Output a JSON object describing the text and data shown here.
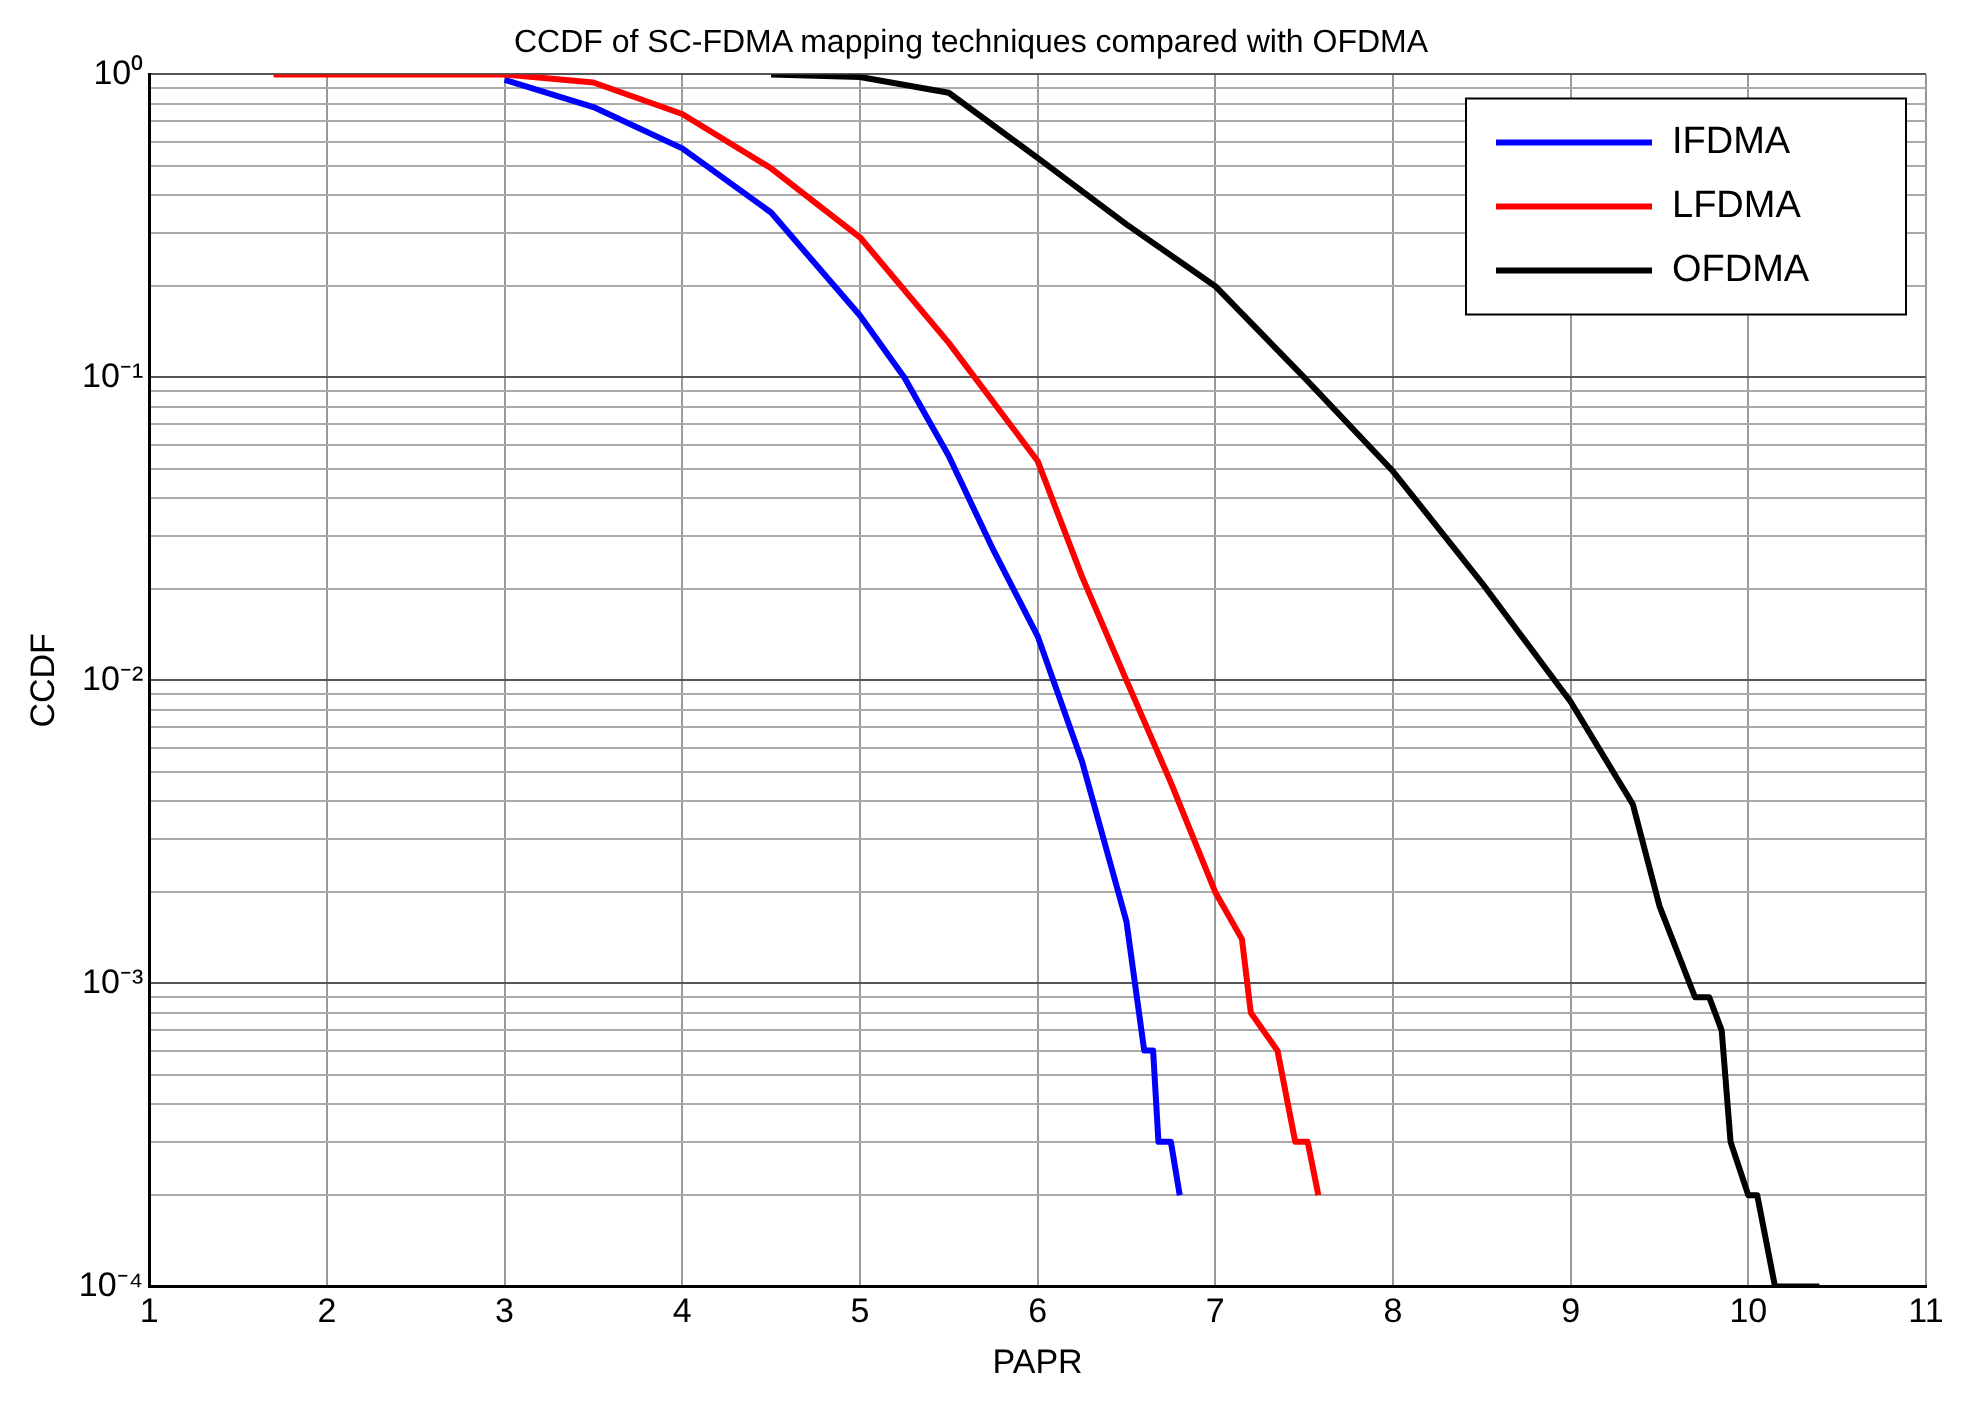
{
  "chart_data": {
    "type": "line",
    "title": "CCDF of SC-FDMA mapping techniques compared with OFDMA",
    "xlabel": "PAPR",
    "ylabel": "CCDF",
    "log": "y",
    "grid": true,
    "legend": "top right",
    "marker": "none",
    "line_style": "solid",
    "xlim": [
      1,
      11
    ],
    "xticks": [
      1,
      2,
      3,
      4,
      5,
      6,
      7,
      8,
      9,
      10,
      11
    ],
    "ylim": [
      0.0001,
      1
    ],
    "yticks": [
      {
        "value": 0.0001,
        "label": "10⁻⁴"
      },
      {
        "value": 0.0002,
        "label": null
      },
      {
        "value": 0.0003,
        "label": null
      },
      {
        "value": 0.0004,
        "label": null
      },
      {
        "value": 0.0005,
        "label": null
      },
      {
        "value": 0.0006,
        "label": null
      },
      {
        "value": 0.0007,
        "label": null
      },
      {
        "value": 0.0008,
        "label": null
      },
      {
        "value": 0.0009,
        "label": null
      },
      {
        "value": 0.001,
        "label": "10⁻³"
      },
      {
        "value": 0.002,
        "label": null
      },
      {
        "value": 0.003,
        "label": null
      },
      {
        "value": 0.004,
        "label": null
      },
      {
        "value": 0.005,
        "label": null
      },
      {
        "value": 0.006,
        "label": null
      },
      {
        "value": 0.007,
        "label": null
      },
      {
        "value": 0.008,
        "label": null
      },
      {
        "value": 0.009,
        "label": null
      },
      {
        "value": 0.01,
        "label": "10⁻²"
      },
      {
        "value": 0.02,
        "label": null
      },
      {
        "value": 0.03,
        "label": null
      },
      {
        "value": 0.04,
        "label": null
      },
      {
        "value": 0.05,
        "label": null
      },
      {
        "value": 0.06,
        "label": null
      },
      {
        "value": 0.07,
        "label": null
      },
      {
        "value": 0.08,
        "label": null
      },
      {
        "value": 0.09,
        "label": null
      },
      {
        "value": 0.1,
        "label": "10⁻¹"
      },
      {
        "value": 0.2,
        "label": null
      },
      {
        "value": 0.3,
        "label": null
      },
      {
        "value": 0.4,
        "label": null
      },
      {
        "value": 0.5,
        "label": null
      },
      {
        "value": 0.6,
        "label": null
      },
      {
        "value": 0.7,
        "label": null
      },
      {
        "value": 0.8,
        "label": null
      },
      {
        "value": 0.9,
        "label": null
      },
      {
        "value": 1,
        "label": "10⁰"
      }
    ],
    "series": [
      {
        "name": "IFDMA",
        "color": "#0000ff",
        "x": [
          3,
          3.5,
          4,
          4.5,
          5,
          5.25,
          5.5,
          5.75,
          6,
          6.25,
          6.5,
          6.6,
          6.65,
          6.68,
          6.75,
          6.8
        ],
        "values": [
          0.96,
          0.78,
          0.57,
          0.35,
          0.16,
          0.1,
          0.055,
          0.027,
          0.014,
          0.0054,
          0.0016,
          0.0006,
          0.0006,
          0.0003,
          0.0003,
          0.0002
        ]
      },
      {
        "name": "LFDMA",
        "color": "#ff0000",
        "x": [
          1.7,
          3,
          3.5,
          4,
          4.5,
          5,
          5.5,
          6,
          6.25,
          6.5,
          6.75,
          7,
          7.15,
          7.2,
          7.35,
          7.45,
          7.52,
          7.58
        ],
        "values": [
          1,
          1,
          0.94,
          0.74,
          0.49,
          0.29,
          0.13,
          0.053,
          0.022,
          0.01,
          0.0046,
          0.002,
          0.0014,
          0.0008,
          0.0006,
          0.0003,
          0.0003,
          0.0002
        ]
      },
      {
        "name": "OFDMA",
        "color": "#000000",
        "x": [
          4.5,
          5,
          5.5,
          6,
          6.5,
          7,
          7.5,
          8,
          8.5,
          9,
          9.35,
          9.5,
          9.7,
          9.78,
          9.85,
          9.9,
          10,
          10.05,
          10.15,
          10.4
        ],
        "values": [
          1,
          0.98,
          0.87,
          0.53,
          0.32,
          0.2,
          0.1,
          0.049,
          0.021,
          0.0085,
          0.0039,
          0.0018,
          0.0009,
          0.0009,
          0.0007,
          0.0003,
          0.0002,
          0.0002,
          0.0001,
          0.0001
        ]
      }
    ]
  }
}
